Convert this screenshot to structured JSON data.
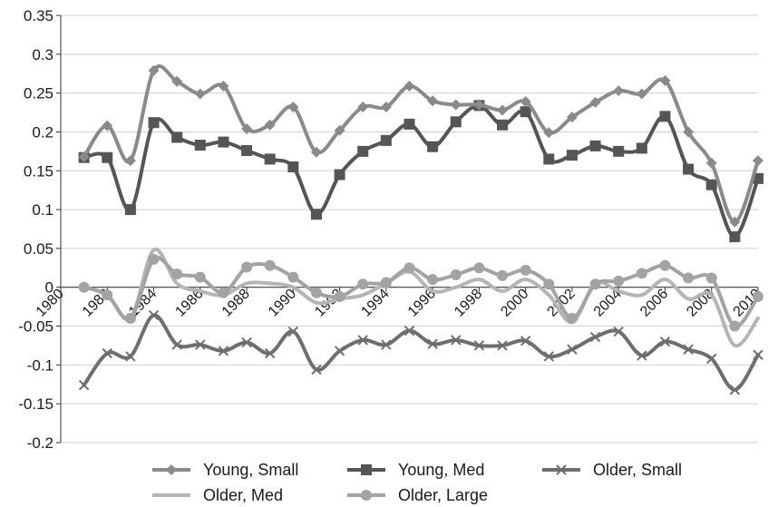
{
  "chart_data": {
    "type": "line",
    "title": "",
    "xlabel": "",
    "ylabel": "",
    "ylim": [
      -0.2,
      0.35
    ],
    "y_ticks": [
      "0.35",
      "0.3",
      "0.25",
      "0.2",
      "0.15",
      "0.1",
      "0.05",
      "0",
      "-0.05",
      "-0.1",
      "-0.15",
      "-0.2"
    ],
    "x_ticks": [
      "1980",
      "1982",
      "1984",
      "1986",
      "1988",
      "1990",
      "1992",
      "1994",
      "1996",
      "1998",
      "2000",
      "2002",
      "2004",
      "2006",
      "2008",
      "2010"
    ],
    "xlim": [
      1980,
      2010
    ],
    "x": [
      1981,
      1982,
      1983,
      1984,
      1985,
      1986,
      1987,
      1988,
      1989,
      1990,
      1991,
      1992,
      1993,
      1994,
      1995,
      1996,
      1997,
      1998,
      1999,
      2000,
      2001,
      2002,
      2003,
      2004,
      2005,
      2006,
      2007,
      2008,
      2009,
      2010
    ],
    "grid": "horizontal",
    "legend_position": "bottom",
    "series": [
      {
        "name": "Young, Small",
        "marker": "diamond",
        "color": "#8a8a8a",
        "values": [
          0.168,
          0.208,
          0.163,
          0.279,
          0.265,
          0.249,
          0.259,
          0.204,
          0.209,
          0.232,
          0.174,
          0.202,
          0.232,
          0.232,
          0.259,
          0.24,
          0.235,
          0.235,
          0.228,
          0.239,
          0.199,
          0.219,
          0.238,
          0.253,
          0.249,
          0.266,
          0.2,
          0.16,
          0.084,
          0.163
        ]
      },
      {
        "name": "Young, Med",
        "marker": "square",
        "color": "#555555",
        "values": [
          0.167,
          0.167,
          0.1,
          0.212,
          0.193,
          0.183,
          0.187,
          0.176,
          0.165,
          0.155,
          0.094,
          0.145,
          0.175,
          0.189,
          0.21,
          0.181,
          0.213,
          0.234,
          0.209,
          0.226,
          0.165,
          0.17,
          0.182,
          0.175,
          0.179,
          0.22,
          0.152,
          0.132,
          0.065,
          0.14
        ]
      },
      {
        "name": "Older, Small",
        "marker": "x",
        "color": "#6e6e6e",
        "values": [
          -0.126,
          -0.085,
          -0.089,
          -0.036,
          -0.074,
          -0.074,
          -0.082,
          -0.071,
          -0.085,
          -0.057,
          -0.106,
          -0.082,
          -0.068,
          -0.074,
          -0.056,
          -0.073,
          -0.068,
          -0.075,
          -0.075,
          -0.069,
          -0.089,
          -0.08,
          -0.064,
          -0.057,
          -0.088,
          -0.07,
          -0.08,
          -0.092,
          -0.132,
          -0.087
        ]
      },
      {
        "name": "Older, Med",
        "marker": "none",
        "color": "#b5b5b5",
        "values": [
          0.0,
          -0.01,
          -0.04,
          0.048,
          0.005,
          -0.005,
          -0.01,
          0.005,
          0.005,
          0.0,
          -0.02,
          -0.015,
          -0.01,
          0.005,
          0.02,
          -0.005,
          0.0,
          0.01,
          -0.005,
          0.01,
          -0.01,
          -0.045,
          0.005,
          -0.005,
          -0.01,
          0.01,
          -0.015,
          -0.01,
          -0.075,
          -0.04
        ]
      },
      {
        "name": "Older, Large",
        "marker": "circle",
        "color": "#a3a3a3",
        "values": [
          0.0,
          -0.01,
          -0.04,
          0.036,
          0.017,
          0.013,
          -0.007,
          0.026,
          0.028,
          0.013,
          -0.007,
          -0.012,
          0.004,
          0.006,
          0.025,
          0.01,
          0.016,
          0.025,
          0.015,
          0.022,
          0.004,
          -0.04,
          0.004,
          0.008,
          0.018,
          0.028,
          0.012,
          0.012,
          -0.05,
          -0.012
        ]
      }
    ]
  }
}
